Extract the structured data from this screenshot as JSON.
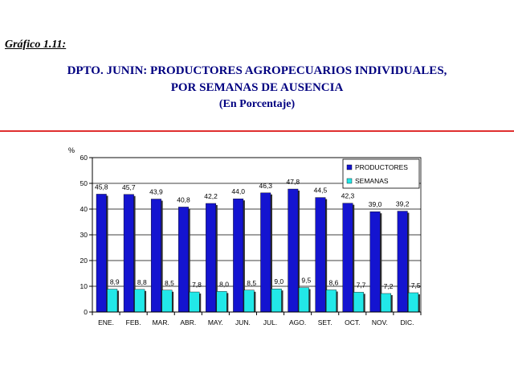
{
  "header": {
    "caption": "Gráfico 1.11:",
    "title_line1": "DPTO. JUNIN: PRODUCTORES AGROPECUARIOS INDIVIDUALES,",
    "title_line2": "POR SEMANAS DE AUSENCIA",
    "title_line3": "(En Porcentaje)"
  },
  "colors": {
    "title": "#000080",
    "rule": "#e03030",
    "productores": "#1414d0",
    "semanas": "#22e8e8"
  },
  "chart_data": {
    "type": "bar",
    "ylabel": "%",
    "ylim": [
      0,
      60
    ],
    "yticks": [
      0,
      10,
      20,
      30,
      40,
      50,
      60
    ],
    "grid": true,
    "legend_position": "top-right",
    "categories": [
      "ENE.",
      "FEB.",
      "MAR.",
      "ABR.",
      "MAY.",
      "JUN.",
      "JUL.",
      "AGO.",
      "SET.",
      "OCT.",
      "NOV.",
      "DIC."
    ],
    "series": [
      {
        "name": "PRODUCTORES",
        "values": [
          45.8,
          45.7,
          43.9,
          40.8,
          42.2,
          44.0,
          46.3,
          47.8,
          44.5,
          42.3,
          39.0,
          39.2
        ],
        "labels": [
          "45,8",
          "45,7",
          "43,9",
          "40,8",
          "42,2",
          "44,0",
          "46,3",
          "47,8",
          "44,5",
          "42,3",
          "39,0",
          "39,2"
        ]
      },
      {
        "name": "SEMANAS",
        "values": [
          8.9,
          8.8,
          8.5,
          7.8,
          8.0,
          8.5,
          9.0,
          9.5,
          8.6,
          7.7,
          7.2,
          7.5
        ],
        "labels": [
          "8,9",
          "8,8",
          "8,5",
          "7,8",
          "8,0",
          "8,5",
          "9,0",
          "9,5",
          "8,6",
          "7,7",
          "7,2",
          "7,5"
        ]
      }
    ]
  }
}
